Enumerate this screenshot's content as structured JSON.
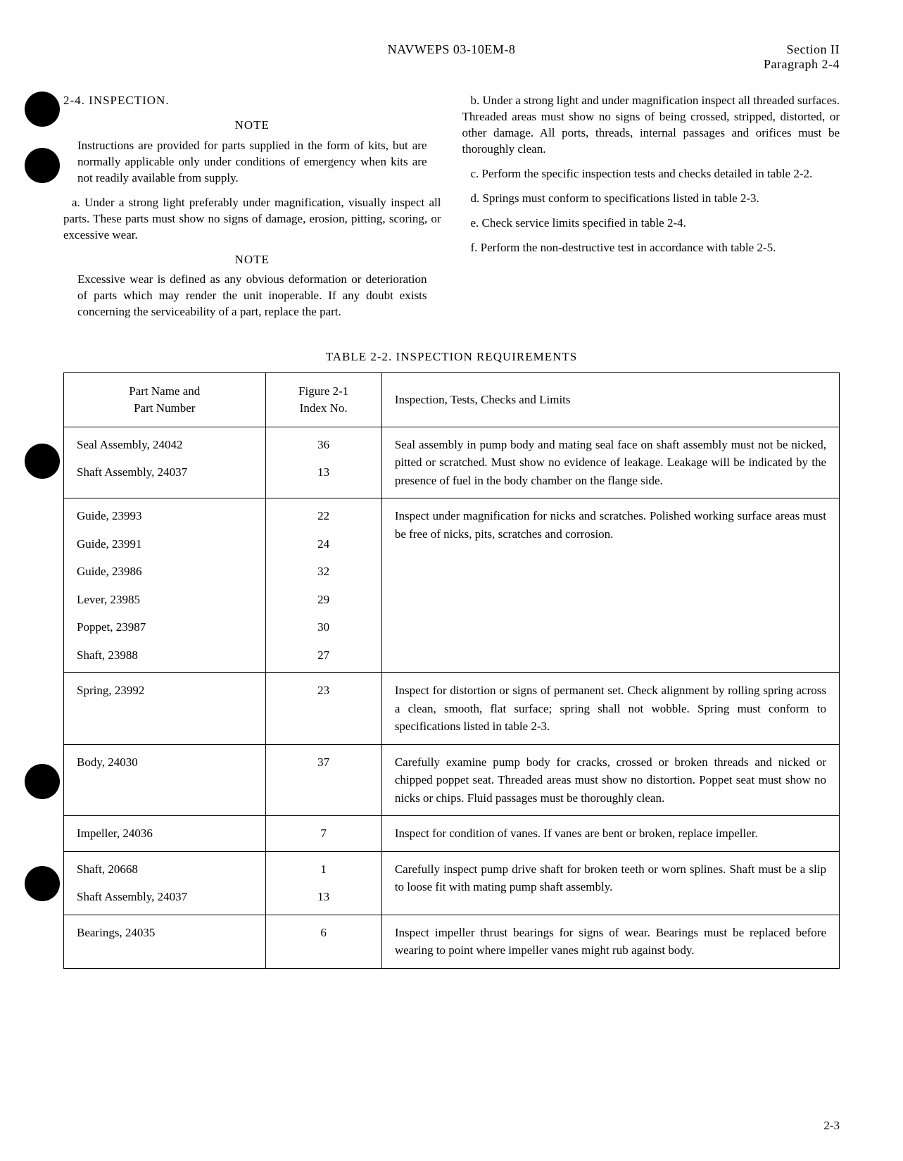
{
  "header": {
    "center": "NAVWEPS 03-10EM-8",
    "right_line1": "Section II",
    "right_line2": "Paragraph 2-4"
  },
  "punch_holes": {
    "color": "#000000",
    "positions": [
      130,
      210,
      630,
      1085,
      1230
    ]
  },
  "left_column": {
    "section_heading": "2-4. INSPECTION.",
    "note1_heading": "NOTE",
    "note1_body": "Instructions are provided for parts supplied in the form of kits, but are normally applicable only under conditions of emergency when kits are not readily available from supply.",
    "para_a": "a. Under a strong light preferably under magnification, visually inspect all parts. These parts must show no signs of damage, erosion, pitting, scoring, or excessive wear.",
    "note2_heading": "NOTE",
    "note2_body": "Excessive wear is defined as any obvious deformation or deterioration of parts which may render the unit inoperable. If any doubt exists concerning the serviceability of a part, replace the part."
  },
  "right_column": {
    "para_b": "b. Under a strong light and under magnification inspect all threaded surfaces. Threaded areas must show no signs of being crossed, stripped, distorted, or other damage. All ports, threads, internal passages and orifices must be thoroughly clean.",
    "para_c": "c. Perform the specific inspection tests and checks detailed in table 2-2.",
    "para_d": "d. Springs must conform to specifications listed in table 2-3.",
    "para_e": "e. Check service limits specified in table 2-4.",
    "para_f": "f. Perform the non-destructive test in accordance with table 2-5."
  },
  "table": {
    "title": "TABLE 2-2. INSPECTION REQUIREMENTS",
    "headers": {
      "col1_line1": "Part Name and",
      "col1_line2": "Part Number",
      "col2_line1": "Figure 2-1",
      "col2_line2": "Index No.",
      "col3": "Inspection, Tests, Checks and Limits"
    },
    "rows": [
      {
        "parts": [
          "Seal Assembly, 24042",
          "Shaft Assembly, 24037"
        ],
        "indices": [
          "36",
          "13"
        ],
        "description": "Seal assembly in pump body and mating seal face on shaft assembly must not be nicked, pitted or scratched. Must show no evidence of leakage. Leakage will be indicated by the presence of fuel in the body chamber on the flange side."
      },
      {
        "parts": [
          "Guide, 23993",
          "Guide, 23991",
          "Guide, 23986",
          "Lever, 23985",
          "Poppet, 23987",
          "Shaft, 23988"
        ],
        "indices": [
          "22",
          "24",
          "32",
          "29",
          "30",
          "27"
        ],
        "description": "Inspect under magnification for nicks and scratches. Polished working surface areas must be free of nicks, pits, scratches and corrosion."
      },
      {
        "parts": [
          "Spring, 23992"
        ],
        "indices": [
          "23"
        ],
        "description": "Inspect for distortion or signs of permanent set. Check alignment by rolling spring across a clean, smooth, flat surface; spring shall not wobble. Spring must conform to specifications listed in table 2-3."
      },
      {
        "parts": [
          "Body, 24030"
        ],
        "indices": [
          "37"
        ],
        "description": "Carefully examine pump body for cracks, crossed or broken threads and nicked or chipped poppet seat. Threaded areas must show no distortion. Poppet seat must show no nicks or chips. Fluid passages must be thoroughly clean."
      },
      {
        "parts": [
          "Impeller, 24036"
        ],
        "indices": [
          "7"
        ],
        "description": "Inspect for condition of vanes. If vanes are bent or broken, replace impeller."
      },
      {
        "parts": [
          "Shaft, 20668",
          "Shaft Assembly, 24037"
        ],
        "indices": [
          "1",
          "13"
        ],
        "description": "Carefully inspect pump drive shaft for broken teeth or worn splines. Shaft must be a slip to loose fit with mating pump shaft assembly."
      },
      {
        "parts": [
          "Bearings, 24035"
        ],
        "indices": [
          "6"
        ],
        "description": "Inspect impeller thrust bearings for signs of wear. Bearings must be replaced before wearing to point where impeller vanes might rub against body."
      }
    ]
  },
  "page_number": "2-3"
}
